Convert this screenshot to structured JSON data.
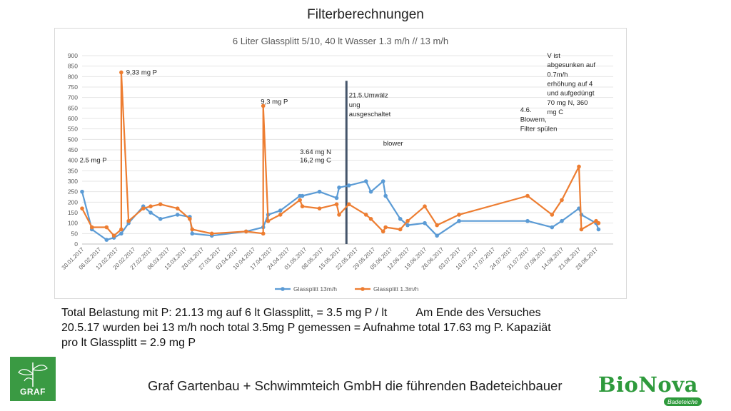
{
  "slide": {
    "title": "Filterberechnungen",
    "body_line1": "Total Belastung mit P:  21.13 mg auf 6 lt Glassplitt, = 3.5 mg P / lt",
    "body_line1b": "Am Ende des Versuches",
    "body_line2": "20.5.17 wurden bei 13 m/h noch total 3.5mg P  gemessen = Aufnahme total 17.63 mg P. Kapaziät",
    "body_line3": "pro lt Glassplitt = 2.9 mg P",
    "footer": "Graf Gartenbau + Schwimmteich GmbH die führenden Badeteichbauer",
    "logo_left": "GRAF",
    "logo_right": "BioNova",
    "logo_right_tag": "Badeteiche"
  },
  "chart_data": {
    "type": "line",
    "title": "6 Liter Glassplitt 5/10, 40 lt Wasser   1.3 m/h  // 13 m/h",
    "xlabel": "",
    "ylabel": "",
    "ylim": [
      0,
      900
    ],
    "yticks": [
      "0",
      "50",
      "100",
      "150",
      "200",
      "250",
      "300",
      "350",
      "400",
      "450",
      "500",
      "550",
      "600",
      "650",
      "700",
      "750",
      "800",
      "850",
      "900"
    ],
    "xlim": [
      "2017-01-30",
      "2017-09-04"
    ],
    "xticks": [
      "30.01.2017",
      "06.02.2017",
      "13.02.2017",
      "20.02.2017",
      "27.02.2017",
      "06.03.2017",
      "13.03.2017",
      "20.03.2017",
      "27.03.2017",
      "03.04.2017",
      "10.04.2017",
      "17.04.2017",
      "24.04.2017",
      "01.05.2017",
      "08.05.2017",
      "15.05.2017",
      "22.05.2017",
      "29.05.2017",
      "05.06.2017",
      "12.06.2017",
      "19.06.2017",
      "26.06.2017",
      "03.07.2017",
      "10.07.2017",
      "17.07.2017",
      "24.07.2017",
      "31.07.2017",
      "07.08.2017",
      "14.08.2017",
      "21.08.2017",
      "28.08.2017"
    ],
    "grid": true,
    "legend": "bottom",
    "series": [
      {
        "name": "Glassplitt 13m/h",
        "color": "#5b9bd5",
        "points": [
          [
            "2017-01-30",
            250
          ],
          [
            "2017-02-03",
            70
          ],
          [
            "2017-02-09",
            20
          ],
          [
            "2017-02-12",
            30
          ],
          [
            "2017-02-15",
            50
          ],
          [
            "2017-02-18",
            100
          ],
          [
            "2017-02-24",
            180
          ],
          [
            "2017-02-27",
            150
          ],
          [
            "2017-03-03",
            120
          ],
          [
            "2017-03-10",
            140
          ],
          [
            "2017-03-15",
            130
          ],
          [
            "2017-03-16",
            50
          ],
          [
            "2017-03-24",
            40
          ],
          [
            "2017-04-07",
            60
          ],
          [
            "2017-04-14",
            80
          ],
          [
            "2017-04-16",
            140
          ],
          [
            "2017-04-21",
            160
          ],
          [
            "2017-04-29",
            230
          ],
          [
            "2017-04-30",
            230
          ],
          [
            "2017-05-07",
            250
          ],
          [
            "2017-05-14",
            220
          ],
          [
            "2017-05-15",
            270
          ],
          [
            "2017-05-19",
            280
          ],
          [
            "2017-05-26",
            300
          ],
          [
            "2017-05-28",
            250
          ],
          [
            "2017-06-02",
            300
          ],
          [
            "2017-06-03",
            230
          ],
          [
            "2017-06-09",
            120
          ],
          [
            "2017-06-12",
            90
          ],
          [
            "2017-06-19",
            100
          ],
          [
            "2017-06-24",
            40
          ],
          [
            "2017-07-03",
            110
          ],
          [
            "2017-07-31",
            110
          ],
          [
            "2017-08-10",
            80
          ],
          [
            "2017-08-14",
            110
          ],
          [
            "2017-08-21",
            170
          ],
          [
            "2017-08-22",
            140
          ],
          [
            "2017-08-28",
            100
          ],
          [
            "2017-08-29",
            70
          ]
        ]
      },
      {
        "name": "Glassplitt 1.3m/h",
        "color": "#ed7d31",
        "points": [
          [
            "2017-01-30",
            170
          ],
          [
            "2017-02-03",
            80
          ],
          [
            "2017-02-09",
            80
          ],
          [
            "2017-02-12",
            40
          ],
          [
            "2017-02-15",
            70
          ],
          [
            "2017-02-15",
            820
          ],
          [
            "2017-02-18",
            110
          ],
          [
            "2017-02-24",
            170
          ],
          [
            "2017-02-27",
            180
          ],
          [
            "2017-03-03",
            190
          ],
          [
            "2017-03-10",
            170
          ],
          [
            "2017-03-15",
            120
          ],
          [
            "2017-03-16",
            70
          ],
          [
            "2017-03-24",
            50
          ],
          [
            "2017-04-07",
            60
          ],
          [
            "2017-04-14",
            50
          ],
          [
            "2017-04-14",
            660
          ],
          [
            "2017-04-16",
            110
          ],
          [
            "2017-04-21",
            140
          ],
          [
            "2017-04-29",
            210
          ],
          [
            "2017-04-30",
            180
          ],
          [
            "2017-05-07",
            170
          ],
          [
            "2017-05-14",
            190
          ],
          [
            "2017-05-15",
            140
          ],
          [
            "2017-05-19",
            190
          ],
          [
            "2017-05-26",
            140
          ],
          [
            "2017-05-28",
            120
          ],
          [
            "2017-06-02",
            60
          ],
          [
            "2017-06-03",
            80
          ],
          [
            "2017-06-09",
            70
          ],
          [
            "2017-06-12",
            110
          ],
          [
            "2017-06-19",
            180
          ],
          [
            "2017-06-24",
            90
          ],
          [
            "2017-07-03",
            140
          ],
          [
            "2017-07-31",
            230
          ],
          [
            "2017-08-10",
            140
          ],
          [
            "2017-08-14",
            210
          ],
          [
            "2017-08-21",
            370
          ],
          [
            "2017-08-22",
            70
          ],
          [
            "2017-08-28",
            110
          ],
          [
            "2017-08-29",
            100
          ]
        ]
      }
    ],
    "vertical_line": {
      "date": "2017-05-18",
      "color": "#44546a"
    },
    "annotations": [
      {
        "text": "9,33 mg P",
        "date": "2017-02-17",
        "y": 810
      },
      {
        "text": "9,3 mg P",
        "date": "2017-04-13",
        "y": 670
      },
      {
        "text": "2.5 mg P",
        "date": "2017-01-29",
        "y": 390
      },
      {
        "text": "3.64 mg N",
        "date": "2017-04-29",
        "y": 430
      },
      {
        "text": "16,2 mg C",
        "date": "2017-04-29",
        "y": 390
      },
      {
        "text": "21.5.Umwälz",
        "date": "2017-05-19",
        "y": 700
      },
      {
        "text": "ung",
        "date": "2017-05-19",
        "y": 655
      },
      {
        "text": "ausgeschaltet",
        "date": "2017-05-19",
        "y": 610
      },
      {
        "text": "blower",
        "date": "2017-06-02",
        "y": 470
      },
      {
        "text": "4.6.",
        "date": "2017-07-28",
        "y": 630
      },
      {
        "text": "Blowern,",
        "date": "2017-07-28",
        "y": 585
      },
      {
        "text": "Filter spülen",
        "date": "2017-07-28",
        "y": 540
      },
      {
        "text": "V ist",
        "date": "2017-08-08",
        "y": 890
      },
      {
        "text": "abgesunken auf",
        "date": "2017-08-08",
        "y": 845
      },
      {
        "text": "0.7m/h",
        "date": "2017-08-08",
        "y": 800
      },
      {
        "text": "erhöhung auf 4",
        "date": "2017-08-08",
        "y": 755
      },
      {
        "text": "und aufgedüngt",
        "date": "2017-08-08",
        "y": 710
      },
      {
        "text": "70 mg N, 360",
        "date": "2017-08-08",
        "y": 665
      },
      {
        "text": "mg C",
        "date": "2017-08-08",
        "y": 620
      }
    ]
  }
}
